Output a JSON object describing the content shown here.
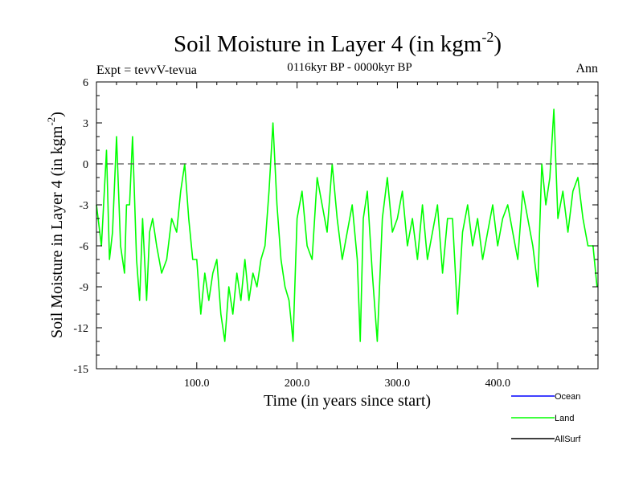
{
  "chart_data": {
    "type": "line",
    "title": "Soil Moisture in Layer 4 (in kgm",
    "title_sup": "-2",
    "title_close": ")",
    "subtitle": "0116kyr BP - 0000kyr BP",
    "expt_label": "Expt = tevvV-tevua",
    "period_label": "Ann",
    "xlabel": "Time (in years since start)",
    "ylabel": "Soil Moisture in Layer 4 (in kgm",
    "ylabel_sup": "-2",
    "ylabel_close": ")",
    "xlim": [
      0,
      500
    ],
    "ylim": [
      -15,
      6
    ],
    "x_ticks": [
      100,
      200,
      300,
      400
    ],
    "x_tick_labels": [
      "100.0",
      "200.0",
      "300.0",
      "400.0"
    ],
    "y_ticks": [
      6,
      3,
      0,
      -3,
      -6,
      -9,
      -12,
      -15
    ],
    "y_tick_labels": [
      "6",
      "3",
      "0",
      "-3",
      "-6",
      "-9",
      "-12",
      "-15"
    ],
    "reference_line": 0,
    "legend": [
      {
        "name": "Ocean",
        "color": "#0000ff"
      },
      {
        "name": "Land",
        "color": "#00ff00"
      },
      {
        "name": "AllSurf",
        "color": "#000000"
      }
    ],
    "series": [
      {
        "name": "Land",
        "color": "#00ff00",
        "x": [
          0,
          5,
          10,
          13,
          16,
          20,
          24,
          28,
          30,
          33,
          36,
          40,
          43,
          46,
          50,
          53,
          56,
          60,
          65,
          70,
          75,
          80,
          84,
          88,
          92,
          96,
          100,
          104,
          108,
          112,
          116,
          120,
          124,
          128,
          132,
          136,
          140,
          144,
          148,
          152,
          156,
          160,
          164,
          168,
          172,
          176,
          180,
          184,
          188,
          192,
          196,
          200,
          205,
          210,
          215,
          220,
          225,
          230,
          235,
          240,
          245,
          250,
          255,
          260,
          263,
          266,
          270,
          275,
          280,
          285,
          290,
          295,
          300,
          305,
          310,
          315,
          320,
          325,
          330,
          335,
          340,
          345,
          350,
          355,
          360,
          365,
          370,
          375,
          380,
          385,
          390,
          395,
          400,
          405,
          410,
          415,
          420,
          425,
          430,
          435,
          440,
          444,
          448,
          452,
          456,
          460,
          465,
          470,
          475,
          480,
          485,
          490,
          495,
          499
        ],
        "values": [
          -3,
          -6,
          1,
          -7,
          -5,
          2,
          -6,
          -8,
          -3,
          -3,
          2,
          -7,
          -10,
          -4,
          -10,
          -5,
          -4,
          -6,
          -8,
          -7,
          -4,
          -5,
          -2,
          0,
          -4,
          -7,
          -7,
          -11,
          -8,
          -10,
          -8,
          -7,
          -11,
          -13,
          -9,
          -11,
          -8,
          -10,
          -7,
          -10,
          -8,
          -9,
          -7,
          -6,
          -2,
          3,
          -3,
          -7,
          -9,
          -10,
          -13,
          -4,
          -2,
          -6,
          -7,
          -1,
          -3,
          -5,
          0,
          -4,
          -7,
          -5,
          -3,
          -7,
          -13,
          -4,
          -2,
          -8,
          -13,
          -4,
          -1,
          -5,
          -4,
          -2,
          -6,
          -4,
          -7,
          -3,
          -7,
          -5,
          -3,
          -8,
          -4,
          -4,
          -11,
          -5,
          -3,
          -6,
          -4,
          -7,
          -5,
          -3,
          -6,
          -4,
          -3,
          -5,
          -7,
          -2,
          -4,
          -6,
          -9,
          0,
          -3,
          -1,
          4,
          -4,
          -2,
          -5,
          -2,
          -1,
          -4,
          -6,
          -6,
          -9
        ]
      }
    ]
  }
}
